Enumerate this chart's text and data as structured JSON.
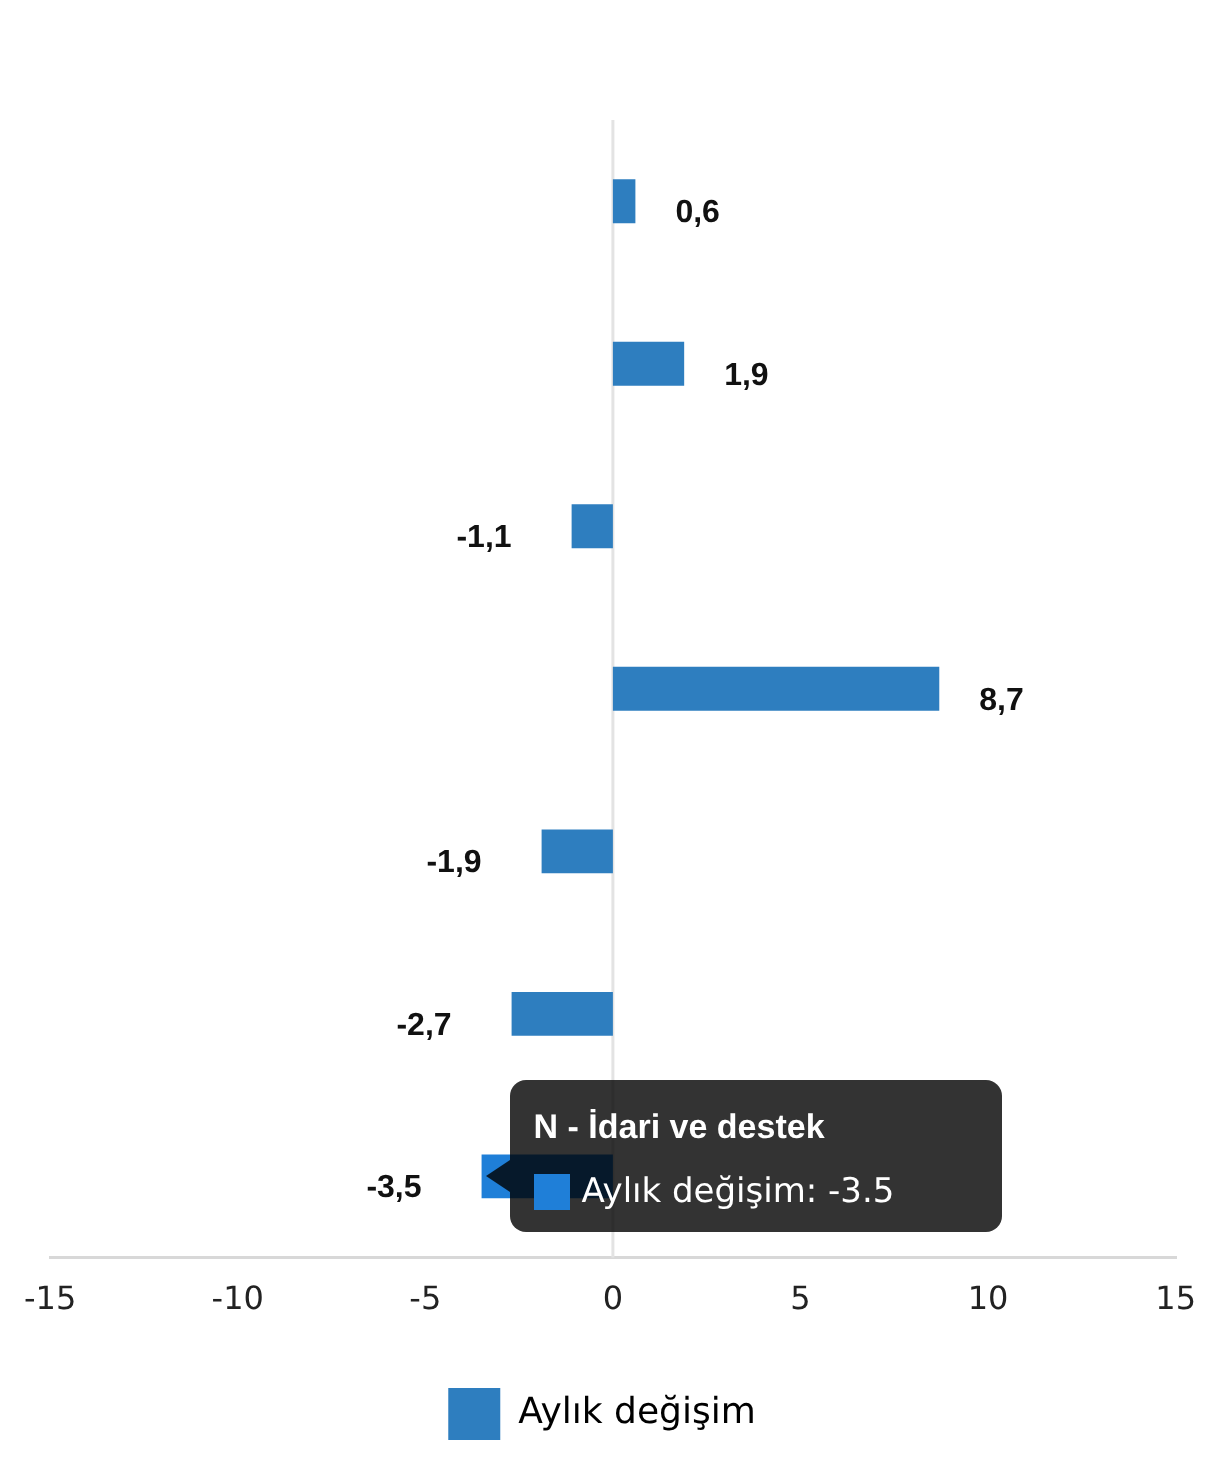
{
  "chart_data": {
    "type": "bar",
    "orientation": "horizontal",
    "categories": [
      null,
      null,
      null,
      null,
      null,
      null,
      null
    ],
    "series": [
      {
        "name": "Aylık değişim",
        "color": "#2e7ebf",
        "colors": [
          "#2e7ebf",
          "#2e7ebf",
          "#2e7ebf",
          "#2e7ebf",
          "#2e7ebf",
          "#2e7ebf",
          "#1f7fd8"
        ],
        "values": [
          0.6,
          1.9,
          -1.1,
          8.7,
          -1.9,
          -2.7,
          -3.5
        ],
        "value_labels": [
          "0,6",
          "1,9",
          "-1,1",
          "8,7",
          "-1,9",
          "-2,7",
          "-3,5"
        ]
      }
    ],
    "xlim": [
      -15,
      15
    ],
    "xticks": [
      -15,
      -10,
      -5,
      0,
      5,
      10,
      15
    ],
    "grid": false,
    "legend": "bottom",
    "ref_lines": [
      {
        "axis": "x",
        "value": 0,
        "color": "#e3e3e3"
      }
    ],
    "annotations": [
      "N - İdari ve destek",
      "Aylık değişim: -3.5"
    ]
  }
}
